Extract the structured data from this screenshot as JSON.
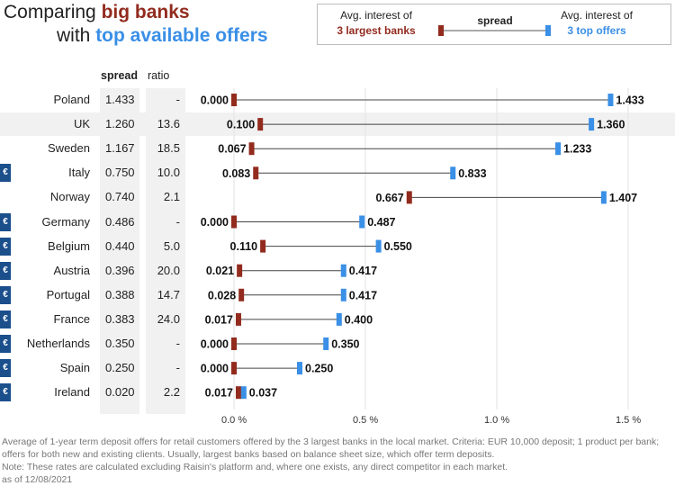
{
  "title": {
    "line1_prefix": "Comparing ",
    "line1_highlight": "big banks",
    "line2_prefix": "with ",
    "line2_highlight": "top available offers"
  },
  "legend": {
    "left_top": "Avg. interest of",
    "left_bottom": "3 largest banks",
    "middle": "spread",
    "right_top": "Avg. interest of",
    "right_bottom": "3 top offers"
  },
  "columns": {
    "spread": "spread",
    "ratio": "ratio"
  },
  "colors": {
    "big_banks": "#922b1e",
    "top_offers": "#3a8fe6",
    "euro_badge": "#1b4f8c",
    "row_highlight": "#f1f1f1"
  },
  "euro_symbol": "€",
  "chart_data": {
    "type": "dumbbell",
    "xlim": [
      0,
      1.5
    ],
    "x_ticks": [
      "0.0 %",
      "0.5 %",
      "1.0 %",
      "1.5 %"
    ],
    "x_tick_values": [
      0,
      0.5,
      1.0,
      1.5
    ],
    "series": [
      {
        "name": "Avg. interest of 3 largest banks",
        "color": "#922b1e"
      },
      {
        "name": "Avg. interest of 3 top offers",
        "color": "#3a8fe6"
      }
    ],
    "rows": [
      {
        "country": "Poland",
        "spread": "1.433",
        "ratio": "-",
        "big": 0.0,
        "big_label": "0.000",
        "top": 1.433,
        "top_label": "1.433",
        "euro": false,
        "highlight": false
      },
      {
        "country": "UK",
        "spread": "1.260",
        "ratio": "13.6",
        "big": 0.1,
        "big_label": "0.100",
        "top": 1.36,
        "top_label": "1.360",
        "euro": false,
        "highlight": true
      },
      {
        "country": "Sweden",
        "spread": "1.167",
        "ratio": "18.5",
        "big": 0.067,
        "big_label": "0.067",
        "top": 1.233,
        "top_label": "1.233",
        "euro": false,
        "highlight": false
      },
      {
        "country": "Italy",
        "spread": "0.750",
        "ratio": "10.0",
        "big": 0.083,
        "big_label": "0.083",
        "top": 0.833,
        "top_label": "0.833",
        "euro": true,
        "highlight": false
      },
      {
        "country": "Norway",
        "spread": "0.740",
        "ratio": "2.1",
        "big": 0.667,
        "big_label": "0.667",
        "top": 1.407,
        "top_label": "1.407",
        "euro": false,
        "highlight": false
      },
      {
        "country": "Germany",
        "spread": "0.486",
        "ratio": "-",
        "big": 0.0,
        "big_label": "0.000",
        "top": 0.487,
        "top_label": "0.487",
        "euro": true,
        "highlight": false
      },
      {
        "country": "Belgium",
        "spread": "0.440",
        "ratio": "5.0",
        "big": 0.11,
        "big_label": "0.110",
        "top": 0.55,
        "top_label": "0.550",
        "euro": true,
        "highlight": false
      },
      {
        "country": "Austria",
        "spread": "0.396",
        "ratio": "20.0",
        "big": 0.021,
        "big_label": "0.021",
        "top": 0.417,
        "top_label": "0.417",
        "euro": true,
        "highlight": false
      },
      {
        "country": "Portugal",
        "spread": "0.388",
        "ratio": "14.7",
        "big": 0.028,
        "big_label": "0.028",
        "top": 0.417,
        "top_label": "0.417",
        "euro": true,
        "highlight": false
      },
      {
        "country": "France",
        "spread": "0.383",
        "ratio": "24.0",
        "big": 0.017,
        "big_label": "0.017",
        "top": 0.4,
        "top_label": "0.400",
        "euro": true,
        "highlight": false
      },
      {
        "country": "Netherlands",
        "spread": "0.350",
        "ratio": "-",
        "big": 0.0,
        "big_label": "0.000",
        "top": 0.35,
        "top_label": "0.350",
        "euro": true,
        "highlight": false
      },
      {
        "country": "Spain",
        "spread": "0.250",
        "ratio": "-",
        "big": 0.0,
        "big_label": "0.000",
        "top": 0.25,
        "top_label": "0.250",
        "euro": true,
        "highlight": false
      },
      {
        "country": "Ireland",
        "spread": "0.020",
        "ratio": "2.2",
        "big": 0.017,
        "big_label": "0.017",
        "top": 0.037,
        "top_label": "0.037",
        "euro": true,
        "highlight": false
      }
    ]
  },
  "footnotes": [
    "Average of 1-year term deposit offers for retail customers offered by the 3 largest banks in the local market. Criteria: EUR 10,000 deposit; 1 product per bank;",
    "offers for both new and existing clients. Usually, largest banks based on balance sheet size, which offer term deposits.",
    "Note: These rates are calculated excluding Raisin's platform and, where one exists, any direct competitor in each market.",
    "as of 12/08/2021"
  ]
}
